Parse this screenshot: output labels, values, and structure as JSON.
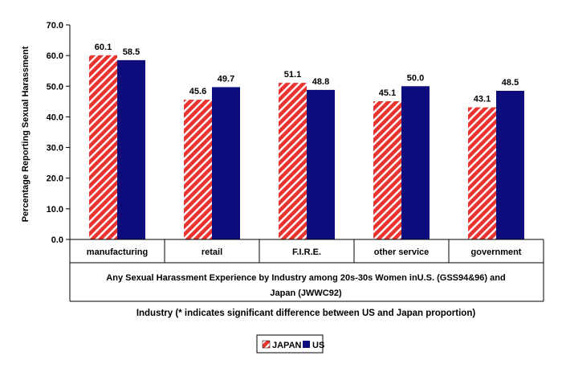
{
  "chart_data": {
    "type": "bar",
    "categories": [
      "manufacturing",
      "retail",
      "F.I.R.E.",
      "other service",
      "government"
    ],
    "series": [
      {
        "name": "JAPAN",
        "values": [
          60.1,
          45.6,
          51.1,
          45.1,
          43.1
        ],
        "color": "#e8342f",
        "pattern": "diagonal-white-stripes"
      },
      {
        "name": "US",
        "values": [
          58.5,
          49.7,
          48.8,
          50.0,
          48.5
        ],
        "color": "#0c0c7c"
      }
    ],
    "data_labels": [
      [
        "60.1",
        "45.6",
        "51.1",
        "45.1",
        "43.1"
      ],
      [
        "58.5",
        "49.7",
        "48.8",
        "50.0",
        "48.5"
      ]
    ],
    "ylabel": "Percentage Reporting Sexual Harassment",
    "ylim": [
      0,
      70
    ],
    "yticks": [
      "0.0",
      "10.0",
      "20.0",
      "30.0",
      "40.0",
      "50.0",
      "60.0",
      "70.0"
    ],
    "caption_line1": "Any Sexual Harassment Experience by Industry among 20s-30s Women inU.S. (GSS94&96) and",
    "caption_line2": "Japan (JWWC92)",
    "xlabel": "Industry (* indicates significant difference between US and Japan proportion)",
    "legend": {
      "position": "bottom-center",
      "items": [
        "JAPAN",
        "US"
      ]
    },
    "grid": false
  }
}
